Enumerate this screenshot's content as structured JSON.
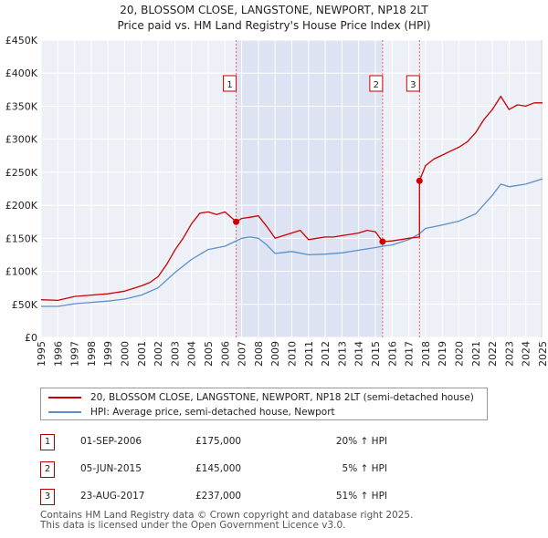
{
  "chart_data": {
    "type": "line",
    "title": "20, BLOSSOM CLOSE, LANGSTONE, NEWPORT, NP18 2LT",
    "subtitle": "Price paid vs. HM Land Registry's House Price Index (HPI)",
    "xlim": [
      1995,
      2025
    ],
    "ylim": [
      0,
      450000
    ],
    "x_ticks": [
      "1995",
      "1996",
      "1997",
      "1998",
      "1999",
      "2000",
      "2001",
      "2002",
      "2003",
      "2004",
      "2005",
      "2006",
      "2007",
      "2008",
      "2009",
      "2010",
      "2011",
      "2012",
      "2013",
      "2014",
      "2015",
      "2016",
      "2017",
      "2018",
      "2019",
      "2020",
      "2021",
      "2022",
      "2023",
      "2024",
      "2025"
    ],
    "y_ticks": [
      {
        "v": 0,
        "label": "£0"
      },
      {
        "v": 50000,
        "label": "£50K"
      },
      {
        "v": 100000,
        "label": "£100K"
      },
      {
        "v": 150000,
        "label": "£150K"
      },
      {
        "v": 200000,
        "label": "£200K"
      },
      {
        "v": 250000,
        "label": "£250K"
      },
      {
        "v": 300000,
        "label": "£300K"
      },
      {
        "v": 350000,
        "label": "£350K"
      },
      {
        "v": 400000,
        "label": "£400K"
      },
      {
        "v": 450000,
        "label": "£450K"
      }
    ],
    "grid": true,
    "ownership_shading": [
      2006.67,
      2015.43
    ],
    "series": [
      {
        "name": "20, BLOSSOM CLOSE, LANGSTONE, NEWPORT, NP18 2LT (semi-detached house)",
        "color": "#cc0000",
        "x": [
          1995,
          1996,
          1997,
          1998,
          1999,
          2000,
          2001,
          2001.5,
          2002,
          2002.5,
          2003,
          2003.5,
          2004,
          2004.5,
          2005,
          2005.5,
          2006,
          2006.67,
          2007,
          2007.5,
          2008,
          2008.5,
          2009,
          2009.5,
          2010,
          2010.5,
          2011,
          2011.5,
          2012,
          2012.5,
          2013,
          2013.5,
          2014,
          2014.5,
          2015,
          2015.43,
          2015.43,
          2016,
          2016.5,
          2017,
          2017.64,
          2017.64,
          2018,
          2018.5,
          2019,
          2019.5,
          2020,
          2020.5,
          2021,
          2021.5,
          2022,
          2022.5,
          2023,
          2023.5,
          2024,
          2024.5,
          2025
        ],
        "y": [
          57000,
          56000,
          62000,
          64000,
          66000,
          70000,
          78000,
          83000,
          92000,
          110000,
          132000,
          150000,
          172000,
          188000,
          190000,
          186000,
          190000,
          175000,
          180000,
          182000,
          184000,
          168000,
          150000,
          154000,
          158000,
          162000,
          148000,
          150000,
          152000,
          152000,
          154000,
          156000,
          158000,
          162000,
          160000,
          145000,
          145000,
          146000,
          148000,
          150000,
          152000,
          237000,
          260000,
          270000,
          276000,
          282000,
          288000,
          296000,
          310000,
          330000,
          345000,
          365000,
          345000,
          352000,
          350000,
          355000,
          355000
        ]
      },
      {
        "name": "HPI: Average price, semi-detached house, Newport",
        "color": "#5b8fc9",
        "x": [
          1995,
          1996,
          1997,
          1998,
          1999,
          2000,
          2001,
          2002,
          2003,
          2004,
          2005,
          2006,
          2006.67,
          2007,
          2007.5,
          2008,
          2008.5,
          2009,
          2010,
          2011,
          2012,
          2013,
          2014,
          2015,
          2015.43,
          2016,
          2017,
          2017.64,
          2018,
          2019,
          2020,
          2021,
          2022,
          2022.5,
          2023,
          2024,
          2025
        ],
        "y": [
          47000,
          47000,
          51000,
          53000,
          55000,
          58000,
          64000,
          75000,
          98000,
          118000,
          133000,
          138000,
          146000,
          150000,
          152000,
          150000,
          140000,
          127000,
          130000,
          125000,
          126000,
          128000,
          132000,
          136000,
          138000,
          140000,
          148000,
          157000,
          165000,
          170000,
          176000,
          187000,
          215000,
          232000,
          228000,
          232000,
          240000
        ]
      }
    ],
    "annotations": [
      {
        "id": "1",
        "x": 2006.67,
        "y": 175000,
        "color": "#cc0000"
      },
      {
        "id": "2",
        "x": 2015.43,
        "y": 145000,
        "color": "#cc0000"
      },
      {
        "id": "3",
        "x": 2017.64,
        "y": 237000,
        "color": "#cc0000"
      }
    ]
  },
  "legend": {
    "property_label": "20, BLOSSOM CLOSE, LANGSTONE, NEWPORT, NP18 2LT (semi-detached house)",
    "hpi_label": "HPI: Average price, semi-detached house, Newport",
    "property_color": "#cc0000",
    "hpi_color": "#5b8fc9"
  },
  "transactions": [
    {
      "id": "1",
      "date": "01-SEP-2006",
      "price": "£175,000",
      "hpi": "20% ↑ HPI"
    },
    {
      "id": "2",
      "date": "05-JUN-2015",
      "price": "£145,000",
      "hpi": "5% ↑ HPI"
    },
    {
      "id": "3",
      "date": "23-AUG-2017",
      "price": "£237,000",
      "hpi": "51% ↑ HPI"
    }
  ],
  "footer": {
    "line1": "Contains HM Land Registry data © Crown copyright and database right 2025.",
    "line2": "This data is licensed under the Open Government Licence v3.0."
  }
}
